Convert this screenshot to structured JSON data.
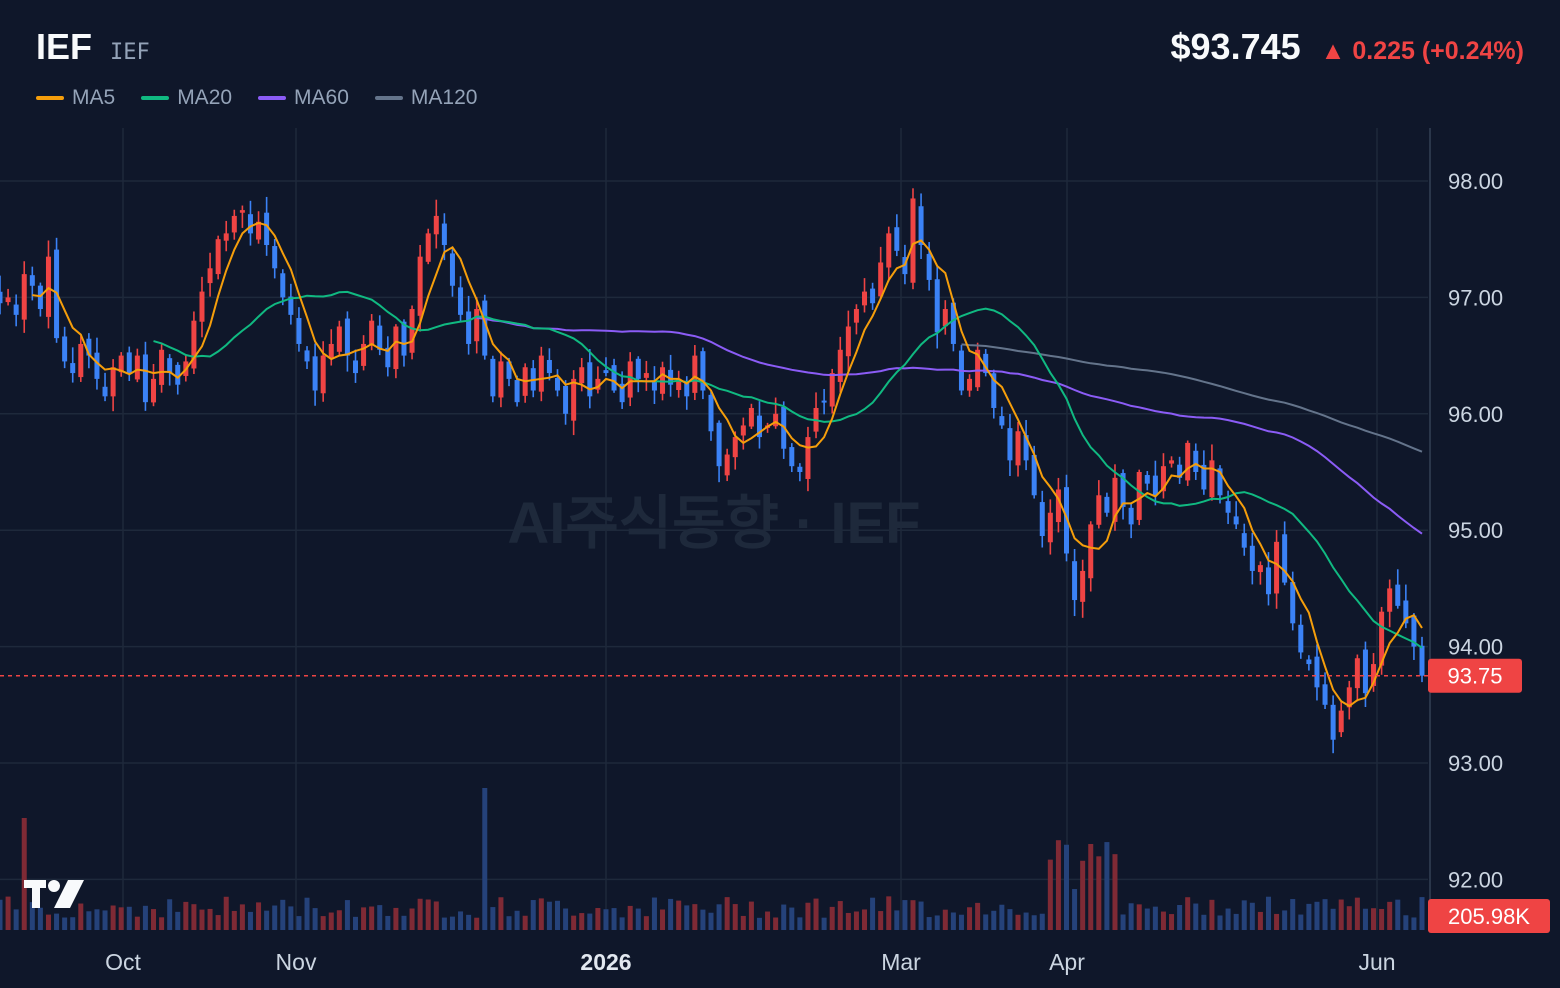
{
  "header": {
    "ticker": "IEF",
    "ticker_sub": "IEF",
    "price": "$93.745",
    "change": "▲ 0.225 (+0.24%)"
  },
  "legend": [
    {
      "label": "MA5",
      "color": "#f59e0b"
    },
    {
      "label": "MA20",
      "color": "#10b981"
    },
    {
      "label": "MA60",
      "color": "#8b5cf6"
    },
    {
      "label": "MA120",
      "color": "#64748b"
    }
  ],
  "watermark": "AI주식동향 · IEF",
  "price_tag": "93.75",
  "volume_tag": "205.98K",
  "colors": {
    "background": "#0f172a",
    "grid": "#1e293b",
    "up": "#ef4444",
    "down": "#3b82f6",
    "volume_up": "#7f2a35",
    "volume_down": "#25427a",
    "text": "#94a3b8"
  },
  "chart_data": {
    "type": "candlestick",
    "y_ticks": [
      "98.00",
      "97.00",
      "96.00",
      "95.00",
      "94.00",
      "93.00",
      "92.00"
    ],
    "y_range": [
      91.55,
      98.9
    ],
    "x_labels": [
      {
        "label": "Oct",
        "bold": false,
        "date": "2025-10-01"
      },
      {
        "label": "Nov",
        "bold": false,
        "date": "2025-11-01"
      },
      {
        "label": "2026",
        "bold": true,
        "date": "2026-01-01"
      },
      {
        "label": "Mar",
        "bold": false,
        "date": "2026-03-01"
      },
      {
        "label": "Apr",
        "bold": false,
        "date": "2026-04-01"
      },
      {
        "label": "Jun",
        "bold": false,
        "date": "2026-06-01"
      }
    ],
    "last_price": 93.75,
    "last_volume": "205.98K",
    "closes": [
      96.95,
      97.0,
      96.85,
      97.2,
      97.1,
      96.9,
      97.35,
      96.65,
      96.45,
      96.35,
      96.6,
      96.5,
      96.3,
      96.15,
      96.4,
      96.5,
      96.35,
      96.5,
      96.1,
      96.3,
      96.55,
      96.35,
      96.25,
      96.45,
      96.8,
      97.05,
      97.25,
      97.5,
      97.55,
      97.7,
      97.75,
      97.55,
      97.65,
      97.45,
      97.25,
      97.0,
      96.85,
      96.6,
      96.45,
      96.2,
      96.5,
      96.6,
      96.75,
      96.5,
      96.35,
      96.6,
      96.8,
      96.55,
      96.4,
      96.75,
      96.5,
      96.9,
      97.35,
      97.55,
      97.7,
      97.45,
      97.1,
      96.85,
      96.6,
      96.9,
      96.5,
      96.15,
      96.45,
      96.3,
      96.1,
      96.4,
      96.2,
      96.5,
      96.35,
      96.2,
      96.0,
      96.3,
      96.4,
      96.15,
      96.3,
      96.35,
      96.2,
      96.1,
      96.45,
      96.3,
      96.35,
      96.2,
      96.4,
      96.25,
      96.3,
      96.15,
      96.5,
      96.2,
      95.85,
      95.55,
      95.65,
      95.8,
      95.9,
      96.05,
      95.8,
      95.9,
      96.0,
      95.7,
      95.55,
      95.5,
      95.8,
      96.05,
      96.1,
      96.35,
      96.55,
      96.75,
      96.9,
      97.05,
      96.95,
      97.3,
      97.55,
      97.4,
      97.2,
      97.85,
      97.45,
      97.15,
      96.7,
      96.9,
      96.6,
      96.2,
      96.3,
      96.55,
      96.35,
      96.05,
      95.9,
      95.6,
      95.85,
      95.6,
      95.3,
      94.95,
      95.15,
      95.35,
      94.8,
      94.4,
      94.65,
      95.05,
      95.3,
      95.15,
      95.45,
      95.2,
      95.05,
      95.5,
      95.4,
      95.3,
      95.55,
      95.6,
      95.45,
      95.75,
      95.5,
      95.35,
      95.6,
      95.3,
      95.15,
      95.05,
      94.85,
      94.65,
      94.7,
      94.45,
      94.9,
      94.55,
      94.2,
      93.95,
      93.85,
      93.65,
      93.5,
      93.2,
      93.45,
      93.65,
      93.9,
      93.6,
      93.85,
      94.3,
      94.5,
      94.35,
      94.2,
      94.0,
      93.75
    ]
  }
}
